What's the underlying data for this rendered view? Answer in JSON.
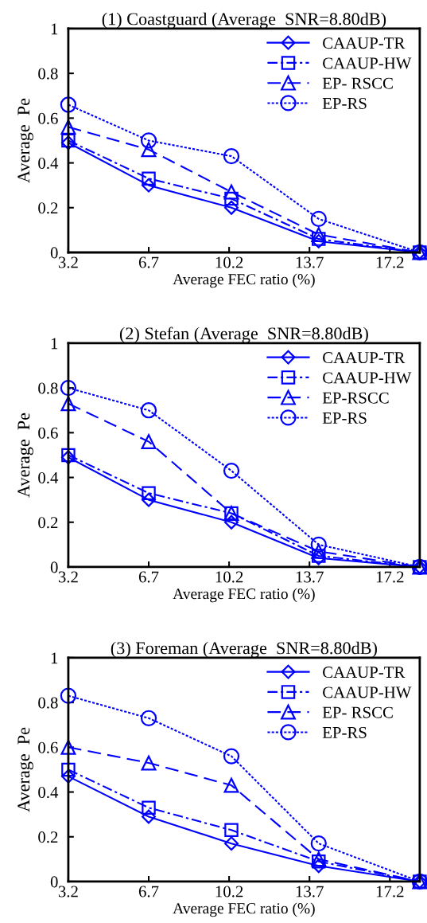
{
  "chart_data": [
    {
      "type": "line",
      "title": "(1) Coastguard (Average  SNR=8.80dB)",
      "xlabel": "Average FEC ratio (%)",
      "ylabel": "Average  Pe",
      "x": [
        3.2,
        6.7,
        10.3,
        14.1,
        18.5
      ],
      "xlim": [
        3.2,
        18.5
      ],
      "xticks": [
        3.2,
        6.7,
        10.2,
        13.7,
        17.2
      ],
      "ylim": [
        0,
        1
      ],
      "yticks": [
        0,
        0.2,
        0.4,
        0.6,
        0.8,
        1
      ],
      "grid": false,
      "legend": "top right",
      "series": [
        {
          "name": "CAAUP-TR",
          "color": "#0000ff",
          "marker": "diamond",
          "line_style": "solid",
          "values": [
            0.49,
            0.3,
            0.2,
            0.05,
            0.0
          ]
        },
        {
          "name": "CAAUP-HW",
          "color": "#0000ff",
          "marker": "square",
          "line_style": "dashdot",
          "values": [
            0.5,
            0.33,
            0.24,
            0.06,
            0.0
          ]
        },
        {
          "name": "EP- RSCC",
          "color": "#0000ff",
          "marker": "triangle",
          "line_style": "dashed",
          "values": [
            0.56,
            0.46,
            0.27,
            0.08,
            0.0
          ]
        },
        {
          "name": "EP-RS",
          "color": "#0000ff",
          "marker": "circle",
          "line_style": "dotted",
          "values": [
            0.66,
            0.5,
            0.43,
            0.15,
            0.0
          ]
        }
      ]
    },
    {
      "type": "line",
      "title": "(2) Stefan (Average  SNR=8.80dB)",
      "xlabel": "Average FEC ratio (%)",
      "ylabel": "Average  Pe",
      "x": [
        3.2,
        6.7,
        10.3,
        14.1,
        18.5
      ],
      "xlim": [
        3.2,
        18.5
      ],
      "xticks": [
        3.2,
        6.7,
        10.2,
        13.7,
        17.2
      ],
      "ylim": [
        0,
        1
      ],
      "yticks": [
        0,
        0.2,
        0.4,
        0.6,
        0.8,
        1
      ],
      "grid": false,
      "legend": "top right",
      "series": [
        {
          "name": "CAAUP-TR",
          "color": "#0000ff",
          "marker": "diamond",
          "line_style": "solid",
          "values": [
            0.49,
            0.3,
            0.2,
            0.04,
            0.0
          ]
        },
        {
          "name": "CAAUP-HW",
          "color": "#0000ff",
          "marker": "square",
          "line_style": "dashdot",
          "values": [
            0.5,
            0.33,
            0.24,
            0.05,
            0.0
          ]
        },
        {
          "name": "EP-RSCC",
          "color": "#0000ff",
          "marker": "triangle",
          "line_style": "dashed",
          "values": [
            0.73,
            0.56,
            0.24,
            0.07,
            0.0
          ]
        },
        {
          "name": "EP-RS",
          "color": "#0000ff",
          "marker": "circle",
          "line_style": "dotted",
          "values": [
            0.8,
            0.7,
            0.43,
            0.1,
            0.0
          ]
        }
      ]
    },
    {
      "type": "line",
      "title": "(3) Foreman (Average  SNR=8.80dB)",
      "xlabel": "Average FEC ratio (%)",
      "ylabel": "Average  Pe",
      "x": [
        3.2,
        6.7,
        10.3,
        14.1,
        18.5
      ],
      "xlim": [
        3.2,
        18.5
      ],
      "xticks": [
        3.2,
        6.7,
        10.2,
        13.7,
        17.2
      ],
      "ylim": [
        0,
        1
      ],
      "yticks": [
        0,
        0.2,
        0.4,
        0.6,
        0.8,
        1
      ],
      "grid": false,
      "legend": "top right",
      "series": [
        {
          "name": "CAAUP-TR",
          "color": "#0000ff",
          "marker": "diamond",
          "line_style": "solid",
          "values": [
            0.47,
            0.29,
            0.17,
            0.07,
            0.0
          ]
        },
        {
          "name": "CAAUP-HW",
          "color": "#0000ff",
          "marker": "square",
          "line_style": "dashdot",
          "values": [
            0.5,
            0.33,
            0.23,
            0.09,
            0.0
          ]
        },
        {
          "name": "EP- RSCC",
          "color": "#0000ff",
          "marker": "triangle",
          "line_style": "dashed",
          "values": [
            0.6,
            0.53,
            0.43,
            0.1,
            0.0
          ]
        },
        {
          "name": "EP-RS",
          "color": "#0000ff",
          "marker": "circle",
          "line_style": "dotted",
          "values": [
            0.83,
            0.73,
            0.56,
            0.17,
            0.0
          ]
        }
      ]
    }
  ]
}
